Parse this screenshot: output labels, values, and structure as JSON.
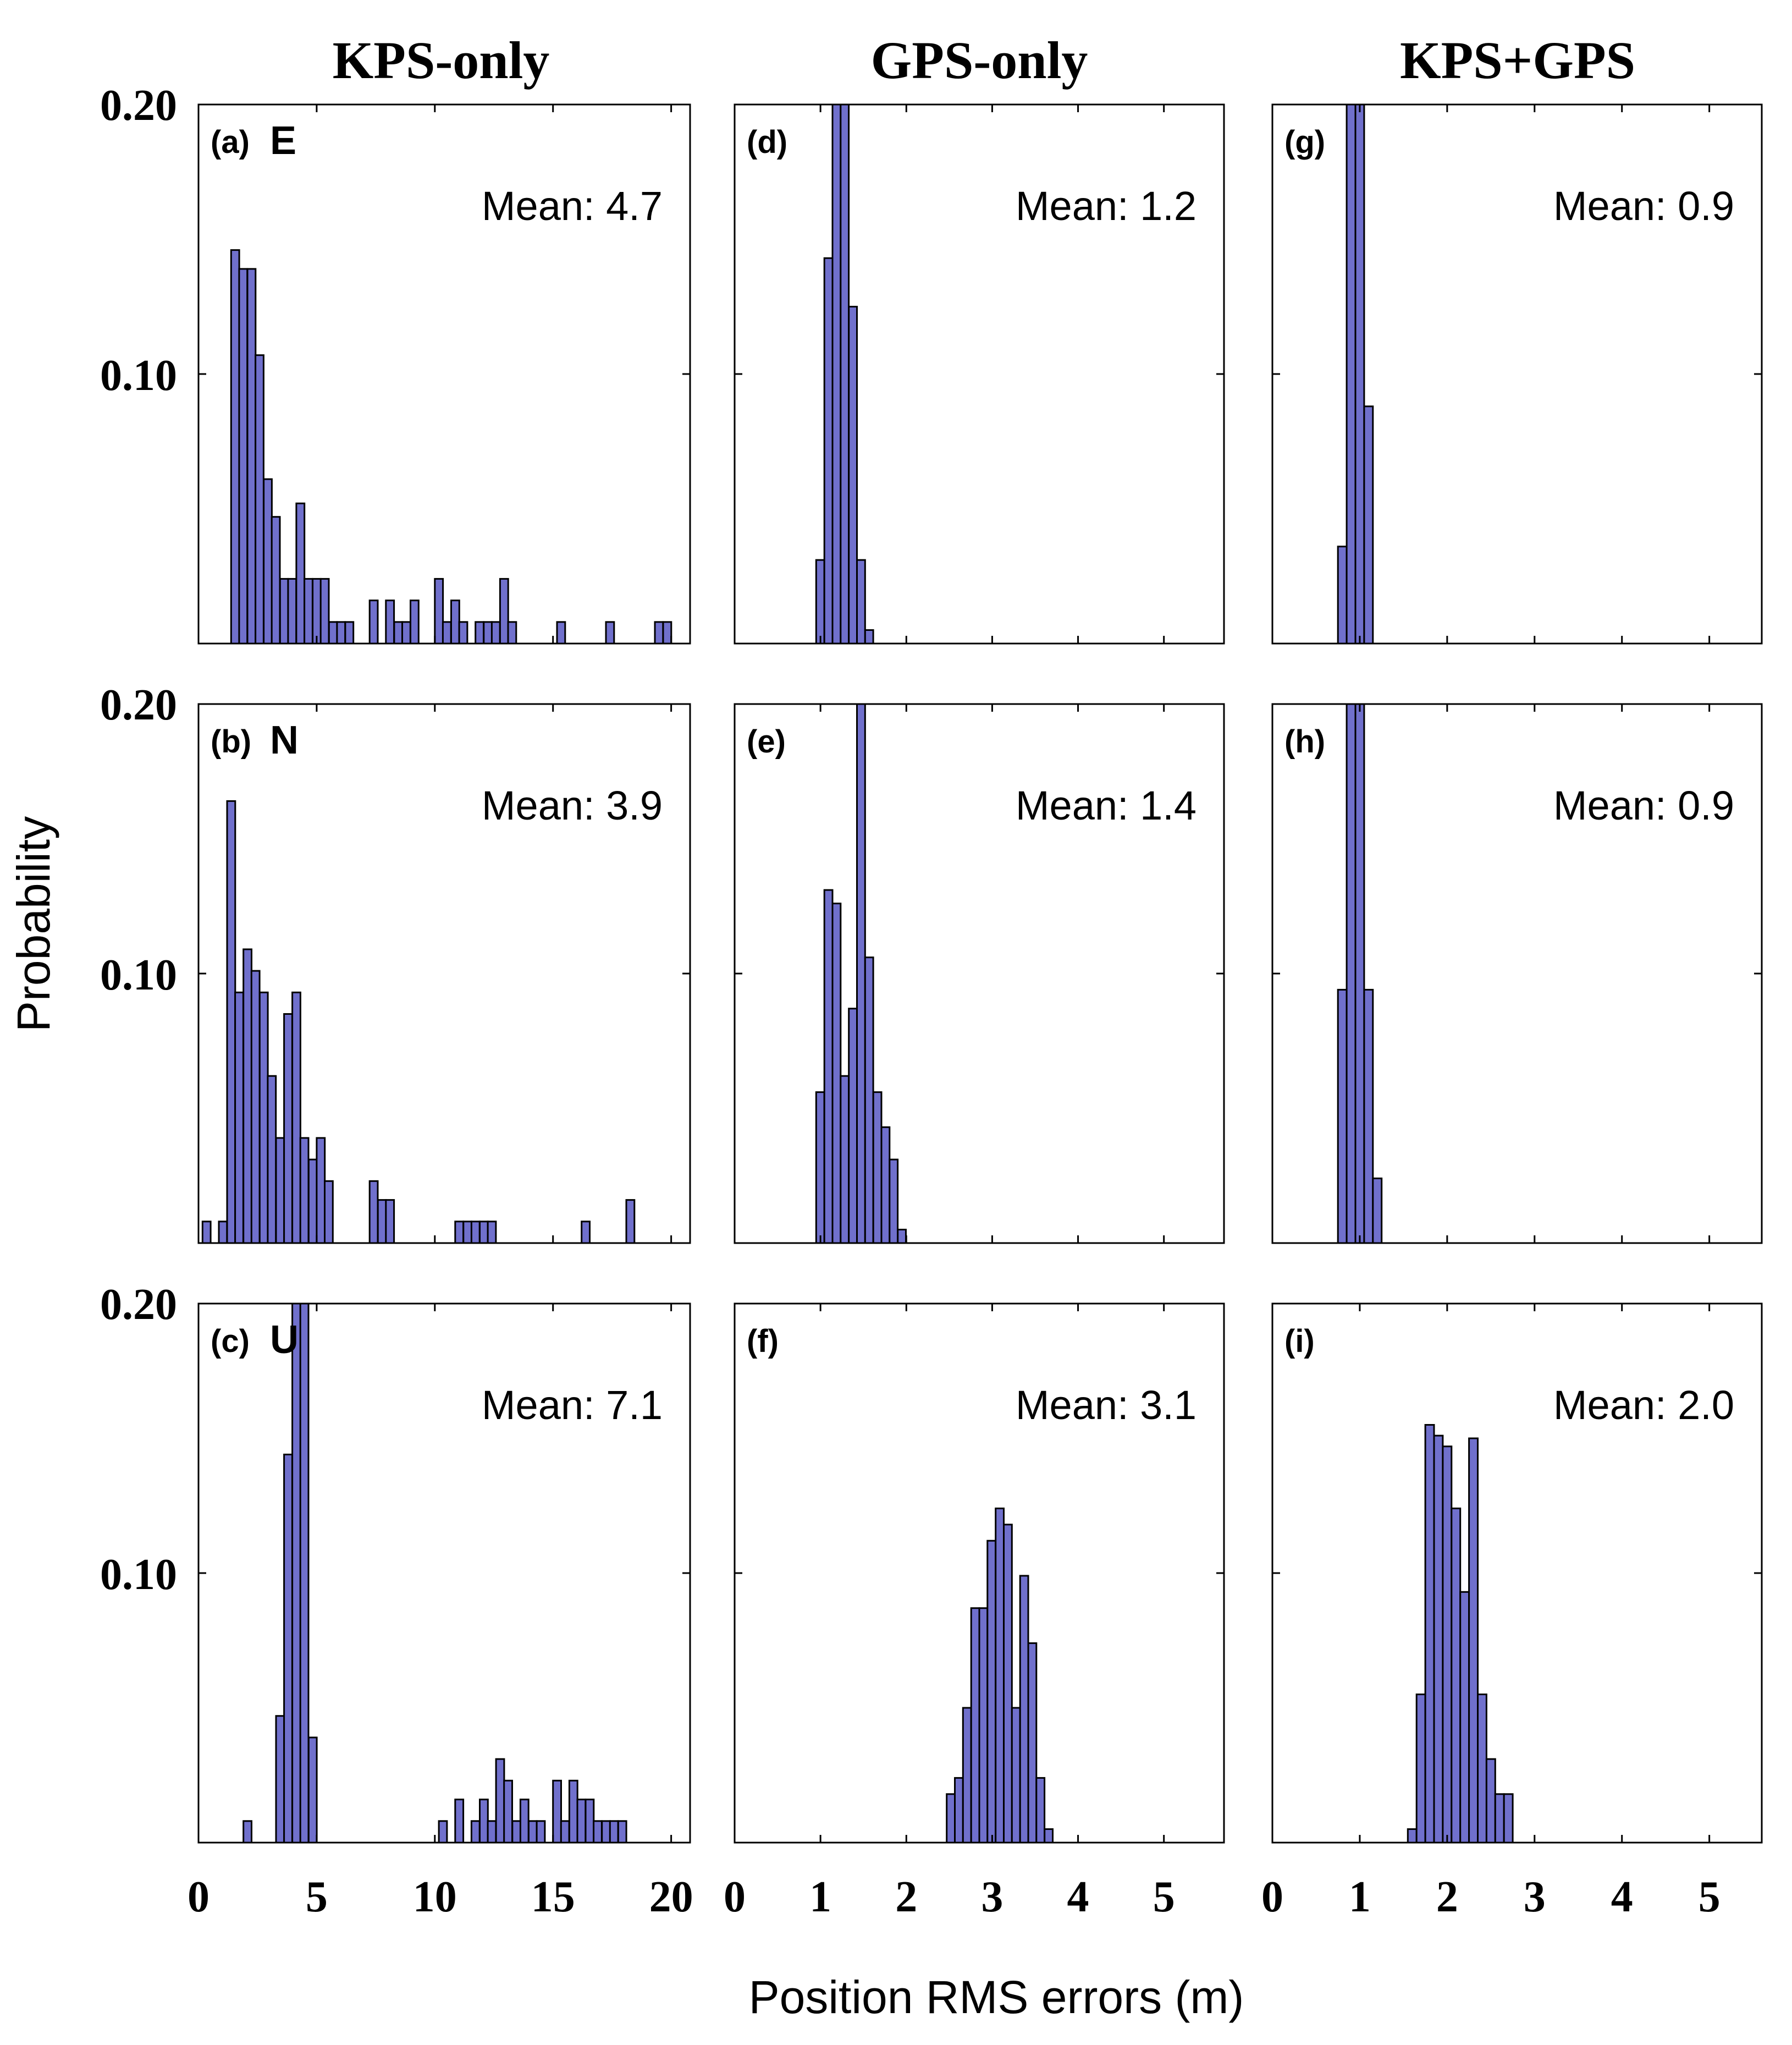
{
  "figure": {
    "ylabel": "Probability",
    "xlabel": "Position RMS errors (m)",
    "bar_color": "#7070cc",
    "column_titles": [
      "KPS-only",
      "GPS-only",
      "KPS+GPS"
    ],
    "y_tick_labels": [
      "0.20",
      "0.10"
    ]
  },
  "chart_data": [
    {
      "type": "bar",
      "panel": "(a)",
      "component": "E",
      "mean_text": "Mean: 4.7",
      "xlim": [
        0,
        20.8
      ],
      "ylim": [
        0,
        0.2
      ],
      "x_ticks": [
        0,
        5,
        10,
        15,
        20
      ],
      "x_tick_labels": [
        "0",
        "5",
        "10",
        "15",
        "20"
      ],
      "bin_width": 0.345,
      "bins": [
        [
          1.38,
          0.146
        ],
        [
          1.72,
          0.139
        ],
        [
          2.07,
          0.139
        ],
        [
          2.41,
          0.107
        ],
        [
          2.76,
          0.061
        ],
        [
          3.1,
          0.047
        ],
        [
          3.45,
          0.024
        ],
        [
          3.79,
          0.024
        ],
        [
          4.14,
          0.052
        ],
        [
          4.48,
          0.024
        ],
        [
          4.83,
          0.024
        ],
        [
          5.17,
          0.024
        ],
        [
          5.52,
          0.008
        ],
        [
          5.86,
          0.008
        ],
        [
          6.21,
          0.008
        ],
        [
          7.24,
          0.016
        ],
        [
          7.93,
          0.016
        ],
        [
          8.28,
          0.008
        ],
        [
          8.62,
          0.008
        ],
        [
          8.97,
          0.016
        ],
        [
          10.0,
          0.024
        ],
        [
          10.34,
          0.008
        ],
        [
          10.69,
          0.016
        ],
        [
          11.03,
          0.008
        ],
        [
          11.72,
          0.008
        ],
        [
          12.07,
          0.008
        ],
        [
          12.41,
          0.008
        ],
        [
          12.76,
          0.024
        ],
        [
          13.1,
          0.008
        ],
        [
          15.17,
          0.008
        ],
        [
          17.24,
          0.008
        ],
        [
          19.31,
          0.008
        ],
        [
          19.66,
          0.008
        ]
      ]
    },
    {
      "type": "bar",
      "panel": "(d)",
      "component": "",
      "mean_text": "Mean: 1.2",
      "xlim": [
        0,
        5.7
      ],
      "ylim": [
        0,
        0.2
      ],
      "x_ticks": [
        0,
        1,
        2,
        3,
        4,
        5
      ],
      "x_tick_labels": [
        "0",
        "1",
        "2",
        "3",
        "4",
        "5"
      ],
      "bin_width": 0.095,
      "bins": [
        [
          0.95,
          0.031
        ],
        [
          1.045,
          0.143
        ],
        [
          1.14,
          0.2
        ],
        [
          1.235,
          0.2
        ],
        [
          1.33,
          0.125
        ],
        [
          1.425,
          0.031
        ],
        [
          1.52,
          0.005
        ]
      ]
    },
    {
      "type": "bar",
      "panel": "(g)",
      "component": "",
      "mean_text": "Mean: 0.9",
      "xlim": [
        0,
        5.6
      ],
      "ylim": [
        0,
        0.2
      ],
      "x_ticks": [
        0,
        1,
        2,
        3,
        4,
        5
      ],
      "x_tick_labels": [
        "0",
        "1",
        "2",
        "3",
        "4",
        "5"
      ],
      "bin_width": 0.1,
      "bins": [
        [
          0.75,
          0.036
        ],
        [
          0.85,
          0.2
        ],
        [
          0.95,
          0.2
        ],
        [
          1.05,
          0.088
        ]
      ]
    },
    {
      "type": "bar",
      "panel": "(b)",
      "component": "N",
      "mean_text": "Mean: 3.9",
      "xlim": [
        0,
        20.8
      ],
      "ylim": [
        0,
        0.2
      ],
      "x_ticks": [
        0,
        5,
        10,
        15,
        20
      ],
      "x_tick_labels": [
        "0",
        "5",
        "10",
        "15",
        "20"
      ],
      "bin_width": 0.345,
      "bins": [
        [
          0.17,
          0.008
        ],
        [
          0.86,
          0.008
        ],
        [
          1.21,
          0.164
        ],
        [
          1.55,
          0.093
        ],
        [
          1.9,
          0.109
        ],
        [
          2.24,
          0.101
        ],
        [
          2.59,
          0.093
        ],
        [
          2.93,
          0.062
        ],
        [
          3.28,
          0.039
        ],
        [
          3.62,
          0.085
        ],
        [
          3.97,
          0.093
        ],
        [
          4.31,
          0.039
        ],
        [
          4.66,
          0.031
        ],
        [
          5.0,
          0.039
        ],
        [
          5.34,
          0.023
        ],
        [
          7.24,
          0.023
        ],
        [
          7.59,
          0.016
        ],
        [
          7.93,
          0.016
        ],
        [
          10.86,
          0.008
        ],
        [
          11.21,
          0.008
        ],
        [
          11.55,
          0.008
        ],
        [
          11.9,
          0.008
        ],
        [
          12.24,
          0.008
        ],
        [
          16.21,
          0.008
        ],
        [
          18.1,
          0.016
        ]
      ]
    },
    {
      "type": "bar",
      "panel": "(e)",
      "component": "",
      "mean_text": "Mean: 1.4",
      "xlim": [
        0,
        5.7
      ],
      "ylim": [
        0,
        0.2
      ],
      "x_ticks": [
        0,
        1,
        2,
        3,
        4,
        5
      ],
      "x_tick_labels": [
        "0",
        "1",
        "2",
        "3",
        "4",
        "5"
      ],
      "bin_width": 0.095,
      "bins": [
        [
          0.95,
          0.056
        ],
        [
          1.045,
          0.131
        ],
        [
          1.14,
          0.126
        ],
        [
          1.235,
          0.062
        ],
        [
          1.33,
          0.087
        ],
        [
          1.425,
          0.2
        ],
        [
          1.52,
          0.106
        ],
        [
          1.615,
          0.056
        ],
        [
          1.71,
          0.043
        ],
        [
          1.805,
          0.031
        ],
        [
          1.9,
          0.005
        ]
      ]
    },
    {
      "type": "bar",
      "panel": "(h)",
      "component": "",
      "mean_text": "Mean: 0.9",
      "xlim": [
        0,
        5.6
      ],
      "ylim": [
        0,
        0.2
      ],
      "x_ticks": [
        0,
        1,
        2,
        3,
        4,
        5
      ],
      "x_tick_labels": [
        "0",
        "1",
        "2",
        "3",
        "4",
        "5"
      ],
      "bin_width": 0.1,
      "bins": [
        [
          0.75,
          0.094
        ],
        [
          0.85,
          0.2
        ],
        [
          0.95,
          0.2
        ],
        [
          1.05,
          0.094
        ],
        [
          1.15,
          0.024
        ]
      ]
    },
    {
      "type": "bar",
      "panel": "(c)",
      "component": "U",
      "mean_text": "Mean: 7.1",
      "xlim": [
        0,
        20.8
      ],
      "ylim": [
        0,
        0.2
      ],
      "x_ticks": [
        0,
        5,
        10,
        15,
        20
      ],
      "x_tick_labels": [
        "0",
        "5",
        "10",
        "15",
        "20"
      ],
      "bin_width": 0.345,
      "bins": [
        [
          1.9,
          0.008
        ],
        [
          3.28,
          0.047
        ],
        [
          3.62,
          0.144
        ],
        [
          3.97,
          0.2
        ],
        [
          4.31,
          0.2
        ],
        [
          4.66,
          0.039
        ],
        [
          10.17,
          0.008
        ],
        [
          10.86,
          0.016
        ],
        [
          11.55,
          0.008
        ],
        [
          11.9,
          0.016
        ],
        [
          12.24,
          0.008
        ],
        [
          12.59,
          0.031
        ],
        [
          12.93,
          0.023
        ],
        [
          13.28,
          0.008
        ],
        [
          13.62,
          0.016
        ],
        [
          13.97,
          0.008
        ],
        [
          14.31,
          0.008
        ],
        [
          15.0,
          0.023
        ],
        [
          15.34,
          0.008
        ],
        [
          15.69,
          0.023
        ],
        [
          16.03,
          0.016
        ],
        [
          16.38,
          0.016
        ],
        [
          16.72,
          0.008
        ],
        [
          17.07,
          0.008
        ],
        [
          17.41,
          0.008
        ],
        [
          17.76,
          0.008
        ]
      ]
    },
    {
      "type": "bar",
      "panel": "(f)",
      "component": "",
      "mean_text": "Mean: 3.1",
      "xlim": [
        0,
        5.7
      ],
      "ylim": [
        0,
        0.2
      ],
      "x_ticks": [
        0,
        1,
        2,
        3,
        4,
        5
      ],
      "x_tick_labels": [
        "0",
        "1",
        "2",
        "3",
        "4",
        "5"
      ],
      "bin_width": 0.095,
      "bins": [
        [
          2.47,
          0.018
        ],
        [
          2.565,
          0.024
        ],
        [
          2.66,
          0.05
        ],
        [
          2.755,
          0.087
        ],
        [
          2.85,
          0.087
        ],
        [
          2.945,
          0.112
        ],
        [
          3.04,
          0.124
        ],
        [
          3.135,
          0.118
        ],
        [
          3.23,
          0.05
        ],
        [
          3.325,
          0.099
        ],
        [
          3.42,
          0.074
        ],
        [
          3.515,
          0.024
        ],
        [
          3.61,
          0.005
        ]
      ]
    },
    {
      "type": "bar",
      "panel": "(i)",
      "component": "",
      "mean_text": "Mean: 2.0",
      "xlim": [
        0,
        5.6
      ],
      "ylim": [
        0,
        0.2
      ],
      "x_ticks": [
        0,
        1,
        2,
        3,
        4,
        5
      ],
      "x_tick_labels": [
        "0",
        "1",
        "2",
        "3",
        "4",
        "5"
      ],
      "bin_width": 0.1,
      "bins": [
        [
          1.55,
          0.005
        ],
        [
          1.65,
          0.055
        ],
        [
          1.75,
          0.155
        ],
        [
          1.85,
          0.151
        ],
        [
          1.95,
          0.147
        ],
        [
          2.05,
          0.124
        ],
        [
          2.15,
          0.093
        ],
        [
          2.25,
          0.15
        ],
        [
          2.35,
          0.055
        ],
        [
          2.45,
          0.031
        ],
        [
          2.55,
          0.018
        ],
        [
          2.65,
          0.018
        ]
      ]
    }
  ]
}
